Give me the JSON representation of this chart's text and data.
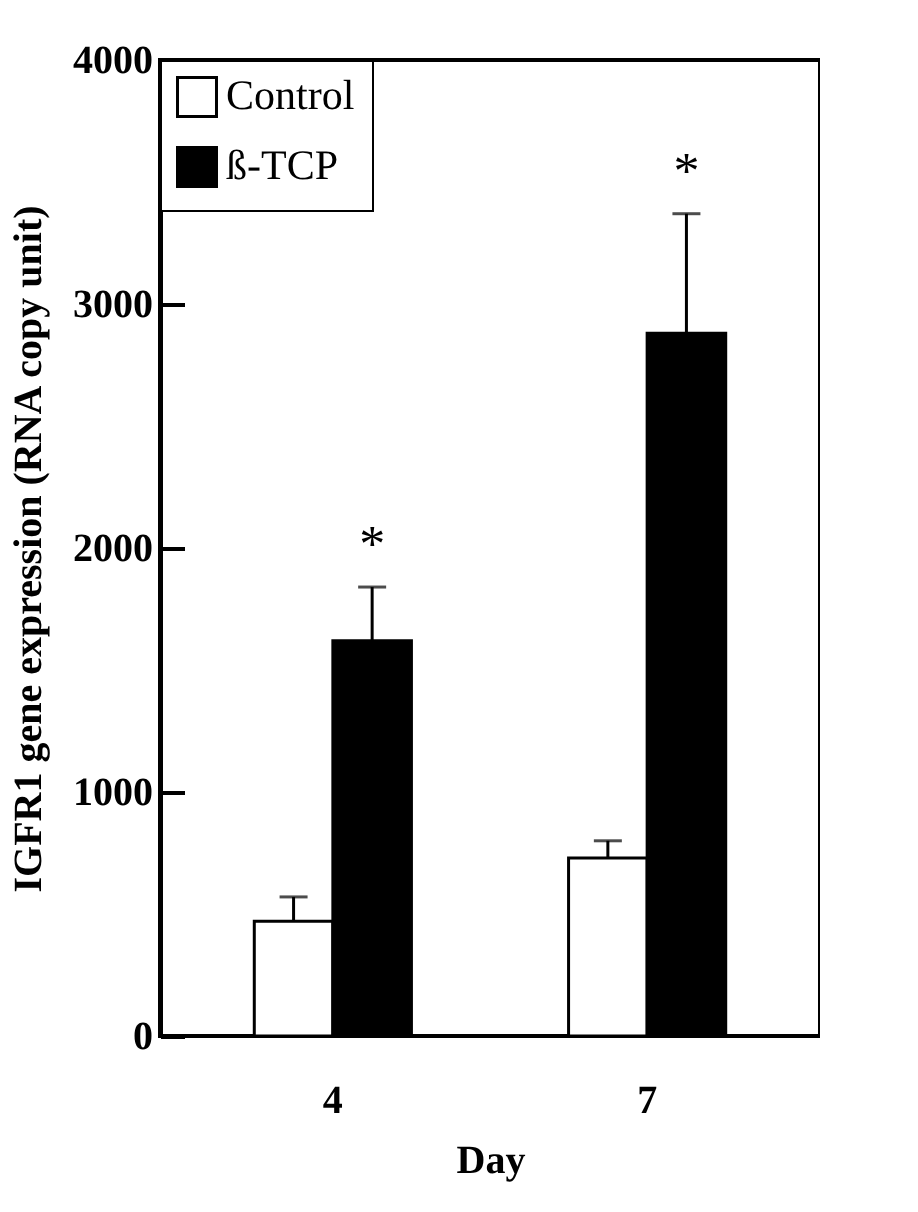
{
  "chart_data": {
    "type": "bar",
    "xlabel": "Day",
    "ylabel": "IGFR1 gene expression (RNA copy unit)",
    "categories": [
      "4",
      "7"
    ],
    "series": [
      {
        "name": "Control",
        "color": "#ffffff",
        "values": [
          470,
          730
        ],
        "errors": [
          [
            470,
            570
          ],
          [
            730,
            800
          ]
        ]
      },
      {
        "name": "ß-TCP",
        "color": "#000000",
        "values": [
          1620,
          2880
        ],
        "errors": [
          [
            1620,
            1840
          ],
          [
            2880,
            3370
          ]
        ]
      }
    ],
    "ylim": [
      0,
      4000
    ],
    "yticks": [
      0,
      1000,
      2000,
      3000,
      4000
    ],
    "grid": false,
    "legend": "top left",
    "annotations": [
      "*",
      "*"
    ]
  }
}
